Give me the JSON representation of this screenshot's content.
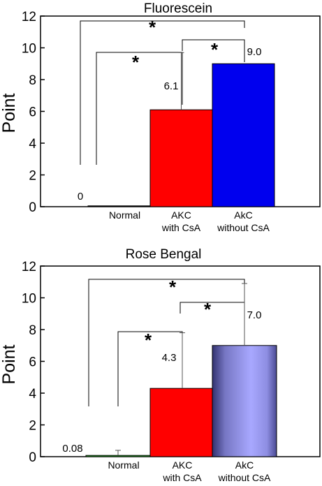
{
  "chart_data": [
    {
      "type": "bar",
      "title": "Fluorescein",
      "ylabel": "Point",
      "ylim": [
        0,
        12
      ],
      "yticks": [
        "0",
        "2",
        "4",
        "6",
        "8",
        "10",
        "12"
      ],
      "categories": [
        [
          "Normal"
        ],
        [
          "AKC",
          "with CsA"
        ],
        [
          "AkC",
          "without CsA"
        ]
      ],
      "values": [
        0,
        6.1,
        9.0
      ],
      "value_labels": [
        "0",
        "6.1",
        "9.0"
      ],
      "error_upper": [
        0,
        9.7,
        9.0
      ],
      "colors": [
        "#111111",
        "#ff0000",
        "#0000ee"
      ],
      "significance": [
        {
          "from": 0,
          "to": 2,
          "label": "*"
        },
        {
          "from": 0,
          "to": 1,
          "label": "*"
        },
        {
          "from": 1,
          "to": 2,
          "label": "*"
        }
      ]
    },
    {
      "type": "bar",
      "title": "Rose Bengal",
      "ylabel": "Point",
      "ylim": [
        0,
        12
      ],
      "yticks": [
        "0",
        "2",
        "4",
        "6",
        "8",
        "10",
        "12"
      ],
      "categories": [
        [
          "Normal"
        ],
        [
          "AKC",
          "with CsA"
        ],
        [
          "AkC",
          "without CsA"
        ]
      ],
      "values": [
        0.08,
        4.3,
        7.0
      ],
      "value_labels": [
        "0.08",
        "4.3",
        "7.0"
      ],
      "error_upper": [
        0.4,
        7.8,
        10.9
      ],
      "colors": [
        "#33bb33",
        "#ff0000",
        "#9999ee"
      ],
      "significance": [
        {
          "from": 0,
          "to": 2,
          "label": "*"
        },
        {
          "from": 0,
          "to": 1,
          "label": "*"
        },
        {
          "from": 1,
          "to": 2,
          "label": "*"
        }
      ]
    }
  ]
}
